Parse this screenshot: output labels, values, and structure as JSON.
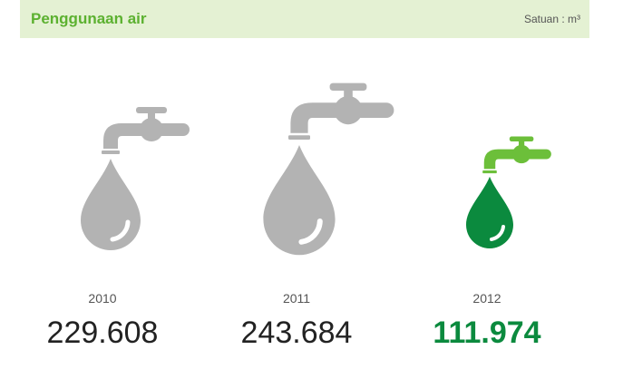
{
  "header": {
    "title": "Penggunaan air",
    "unit": "Satuan : m³"
  },
  "items": [
    {
      "year": "2010",
      "value": "229.608"
    },
    {
      "year": "2011",
      "value": "243.684"
    },
    {
      "year": "2012",
      "value": "111.974"
    }
  ]
}
